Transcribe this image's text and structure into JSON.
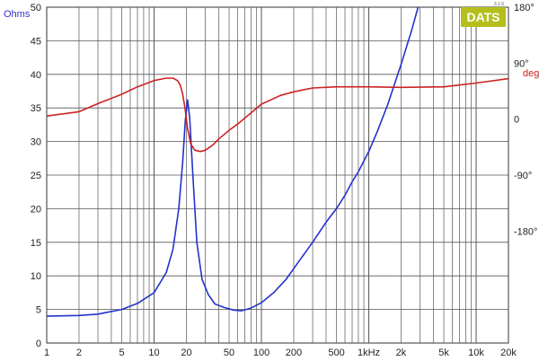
{
  "brand": {
    "name": "DATS",
    "version": "3.1.6",
    "color": "#b5bf1c"
  },
  "chart_data": {
    "type": "line",
    "xscale": "log",
    "xlim": [
      1,
      20000
    ],
    "ylim_left": [
      0,
      50
    ],
    "ylim_right_deg": [
      -360,
      180
    ],
    "grid": true,
    "left_axis_unit": "Ohms",
    "right_axis_unit": "deg",
    "x_tick_labels": [
      {
        "value": 1,
        "label": "1"
      },
      {
        "value": 2,
        "label": "2"
      },
      {
        "value": 5,
        "label": "5"
      },
      {
        "value": 10,
        "label": "10"
      },
      {
        "value": 20,
        "label": "20"
      },
      {
        "value": 50,
        "label": "50"
      },
      {
        "value": 100,
        "label": "100"
      },
      {
        "value": 200,
        "label": "200"
      },
      {
        "value": 500,
        "label": "500"
      },
      {
        "value": 1000,
        "label": "1kHz"
      },
      {
        "value": 2000,
        "label": "2k"
      },
      {
        "value": 5000,
        "label": "5k"
      },
      {
        "value": 10000,
        "label": "10k"
      },
      {
        "value": 20000,
        "label": "20k"
      }
    ],
    "y_left_ticks": [
      0,
      5,
      10,
      15,
      20,
      25,
      30,
      35,
      40,
      45,
      50
    ],
    "y_right_ticks": [
      {
        "value": 180,
        "label": "180°"
      },
      {
        "value": 90,
        "label": "90°"
      },
      {
        "value": 0,
        "label": "0"
      },
      {
        "value": -90,
        "label": "-90°"
      },
      {
        "value": -180,
        "label": "-180°"
      }
    ],
    "series": [
      {
        "color": "#2233cc",
        "axis": "left",
        "x": [
          1,
          2,
          3,
          5,
          7,
          10,
          13,
          15,
          17,
          18.5,
          19.5,
          20.5,
          21.5,
          23,
          25,
          28,
          32,
          37,
          45,
          55,
          65,
          80,
          100,
          130,
          170,
          220,
          300,
          400,
          500,
          600,
          700,
          800,
          1000,
          1200,
          1500,
          2000,
          2500,
          3000
        ],
        "y": [
          4.0,
          4.1,
          4.3,
          5.0,
          5.9,
          7.5,
          10.5,
          14.0,
          20.0,
          27.0,
          33.0,
          36.2,
          33.5,
          25.0,
          15.0,
          9.5,
          7.2,
          5.8,
          5.3,
          4.9,
          4.8,
          5.2,
          6.0,
          7.5,
          9.5,
          12.0,
          15.0,
          18.0,
          20.0,
          22.0,
          24.0,
          25.5,
          28.5,
          31.5,
          35.5,
          41.5,
          46.5,
          51.0
        ]
      },
      {
        "color": "#cc2222",
        "axis": "right",
        "x": [
          1,
          2,
          3,
          5,
          7,
          10,
          13,
          15,
          16.5,
          17.5,
          18.5,
          19.5,
          20.5,
          22,
          24,
          27,
          30,
          35,
          40,
          50,
          60,
          80,
          100,
          150,
          200,
          300,
          500,
          1000,
          2000,
          5000,
          10000,
          20000
        ],
        "y": [
          5.0,
          12.0,
          25.0,
          40.0,
          52.0,
          62.0,
          66.0,
          66.0,
          62.0,
          55.0,
          40.0,
          15.0,
          -15.0,
          -40.0,
          -50.0,
          -52.0,
          -50.0,
          -42.0,
          -32.0,
          -18.0,
          -8.0,
          10.0,
          24.0,
          38.0,
          44.0,
          50.0,
          52.0,
          52.0,
          51.0,
          52.0,
          58.0,
          65.0
        ]
      }
    ]
  }
}
